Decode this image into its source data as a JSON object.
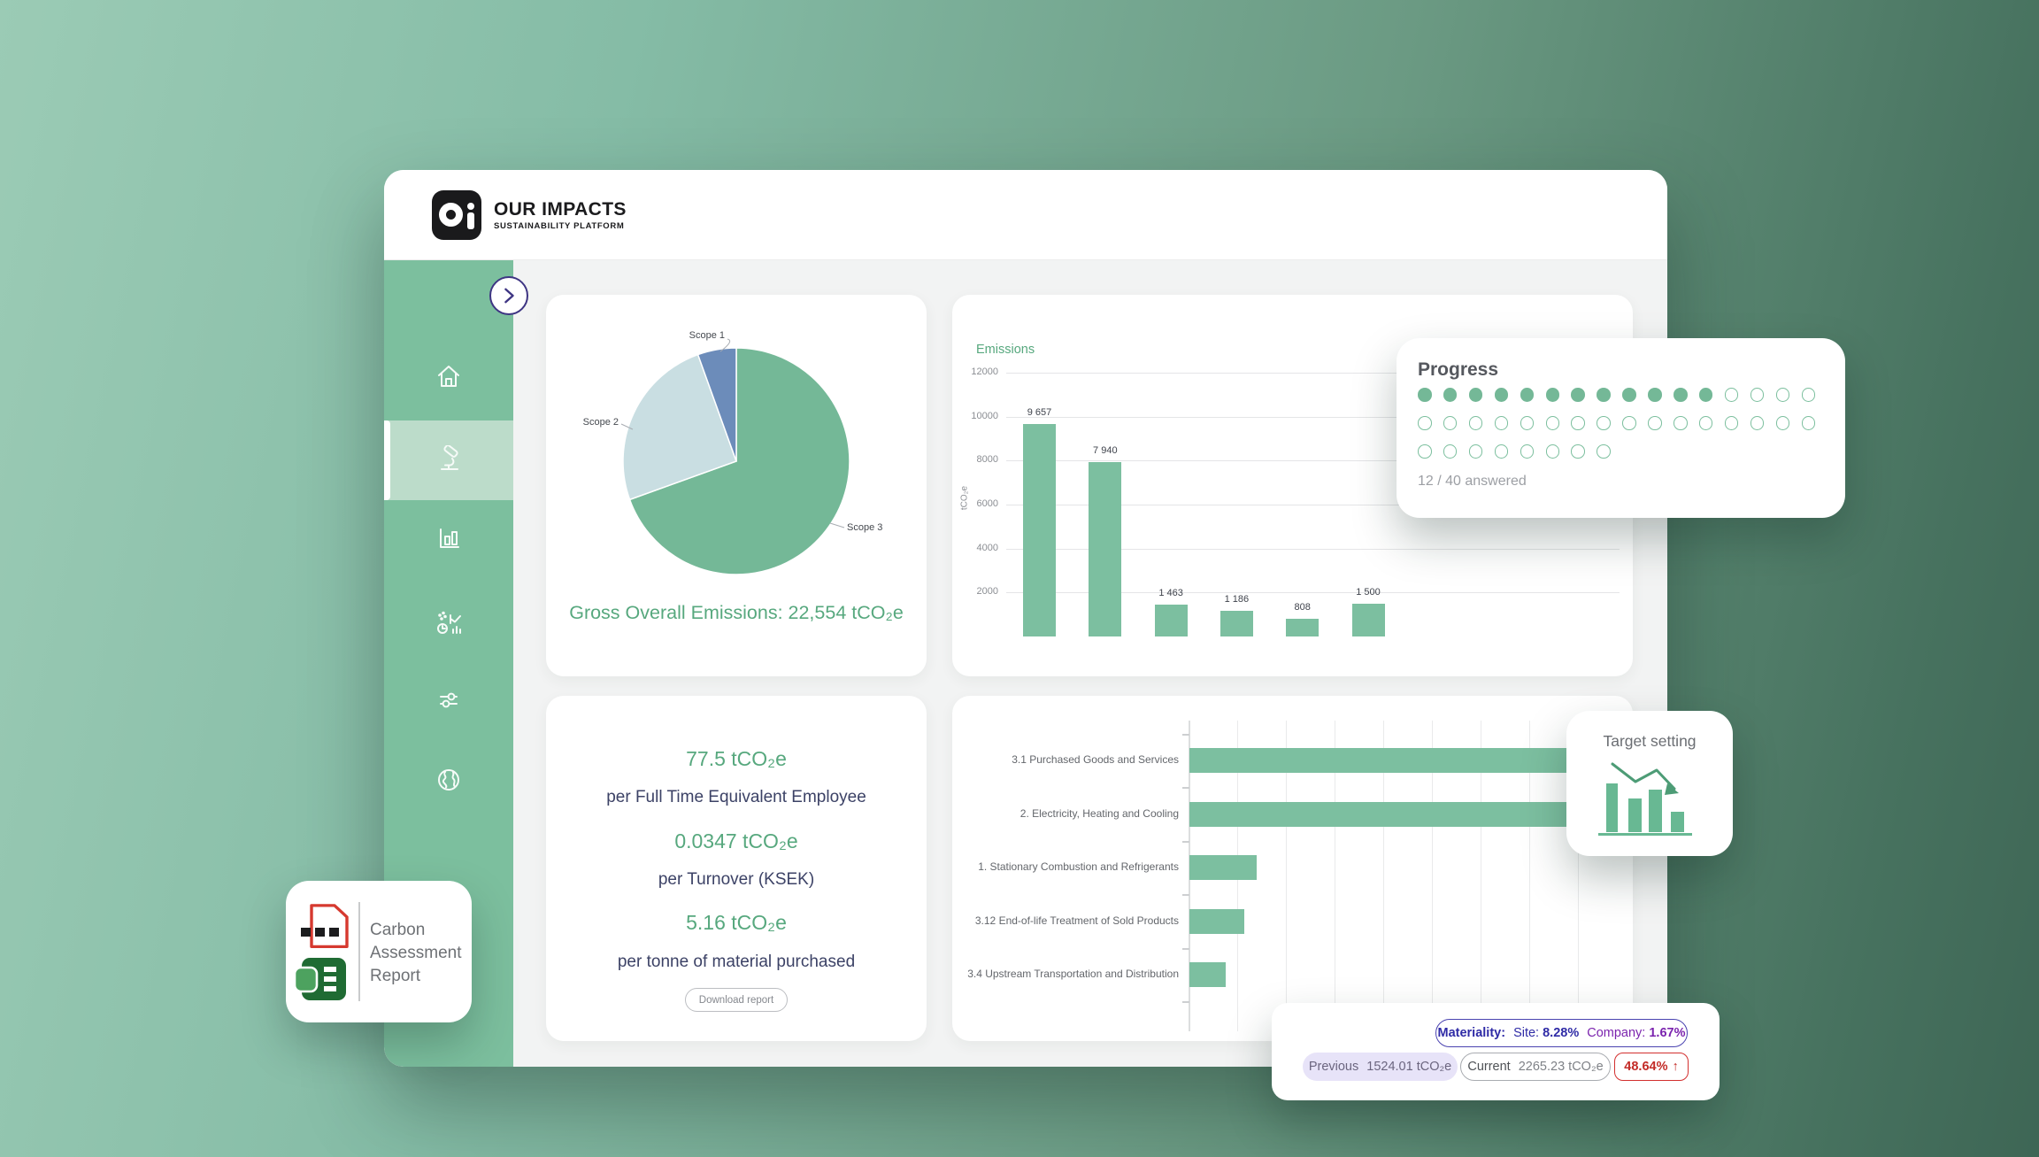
{
  "colors": {
    "background_green_light": "#9BCBB5",
    "background_green_dark": "#3E6655",
    "sidebar_green": "#7CBF9E",
    "sidebar_active_green": "#BCDCCA",
    "bar_green": "#7CBFA0",
    "text_green": "#57A87E",
    "text_navy": "#3C4266",
    "indigo": "#2F2BA6",
    "purple": "#7B24AE",
    "red": "#C32B27",
    "chevron_purple": "#3E3583"
  },
  "header": {
    "logo_glyph": "Oi",
    "brand_name": "OUR IMPACTS",
    "brand_tagline": "SUSTAINABILITY PLATFORM"
  },
  "sidebar": {
    "items": [
      {
        "icon": "home-icon",
        "active": false
      },
      {
        "icon": "microscope-icon",
        "active": true
      },
      {
        "icon": "bar-chart-icon",
        "active": false
      },
      {
        "icon": "analytics-clock-icon",
        "active": false
      },
      {
        "icon": "sliders-icon",
        "active": false
      },
      {
        "icon": "globe-icon",
        "active": false
      }
    ]
  },
  "chart_data": [
    {
      "type": "pie",
      "slices": [
        {
          "label": "Scope 3",
          "pct": 69.5,
          "color": "#74B897"
        },
        {
          "label": "Scope 2",
          "pct": 25.0,
          "color": "#C9DEE2"
        },
        {
          "label": "Scope 1",
          "pct": 5.5,
          "color": "#6C8CBA"
        }
      ],
      "start_angle_deg": 0,
      "caption": "Gross Overall Emissions: 22,554 tCO₂e",
      "total_tco2e": "22,554"
    },
    {
      "type": "bar",
      "title": "Emissions",
      "ylabel": "tCO₂e",
      "ylim": [
        0,
        12000
      ],
      "yticks": [
        2000,
        4000,
        6000,
        8000,
        10000,
        12000
      ],
      "values": [
        9657,
        7940,
        1463,
        1186,
        808,
        1500
      ],
      "value_labels": [
        "9 657",
        "7 940",
        "1 463",
        "1 186",
        "808",
        "1 500"
      ],
      "x_tick_labels_visible": false,
      "grid": true,
      "bar_color": "#7CBFA0"
    },
    {
      "type": "bar",
      "orientation": "horizontal",
      "categories": [
        "3.1 Purchased Goods and Services",
        "2. Electricity, Heating and Cooling",
        "1. Stationary Combustion and Refrigerants",
        "3.12 End-of-life Treatment of Sold Products",
        "3.4 Upstream Transportation and Distribution"
      ],
      "values_estimated": [
        2070,
        2265,
        355,
        290,
        190
      ],
      "xmax_estimated": 2265,
      "value_labels_visible": false,
      "grid": true,
      "bar_color": "#7CBFA0"
    }
  ],
  "progress_card": {
    "title": "Progress",
    "answered": 12,
    "total": 40,
    "dots_per_row": [
      16,
      16,
      8
    ],
    "status_text": "12 / 40 answered"
  },
  "metrics_card": {
    "metrics": [
      {
        "value": "77.5 tCO₂e",
        "label": "per Full Time Equivalent Employee"
      },
      {
        "value": "0.0347 tCO₂e",
        "label": "per Turnover (KSEK)"
      },
      {
        "value": "5.16 tCO₂e",
        "label": "per tonne of material purchased"
      }
    ],
    "download_button": "Download report"
  },
  "target_card": {
    "title": "Target setting"
  },
  "report_card": {
    "line1": "Carbon",
    "line2": "Assessment",
    "line3": "Report"
  },
  "materiality_card": {
    "materiality_label": "Materiality:",
    "site_label": "Site:",
    "site_value": "8.28%",
    "company_label": "Company:",
    "company_value": "1.67%",
    "previous_label": "Previous",
    "previous_value": "1524.01 tCO₂e",
    "current_label": "Current",
    "current_value": "2265.23 tCO₂e",
    "change_value": "48.64%",
    "change_arrow": "↑"
  }
}
